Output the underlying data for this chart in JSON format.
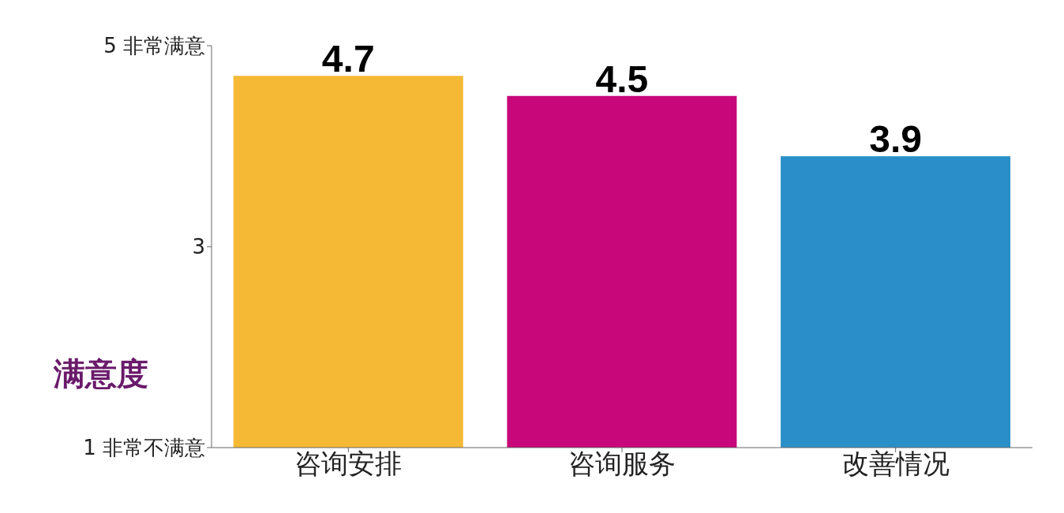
{
  "chart_data": {
    "type": "bar",
    "ylabel": "满意度",
    "categories": [
      "咨询安排",
      "咨询服务",
      "改善情况"
    ],
    "values": [
      4.7,
      4.5,
      3.9
    ],
    "colors": [
      "#f5b935",
      "#c8087a",
      "#2a8fc8"
    ],
    "ylim": [
      1,
      5
    ],
    "yticks": [
      {
        "value": 1,
        "label": "1 非常不满意"
      },
      3,
      {
        "value": 5,
        "label": "5 非常满意"
      }
    ],
    "data_labels": true
  }
}
